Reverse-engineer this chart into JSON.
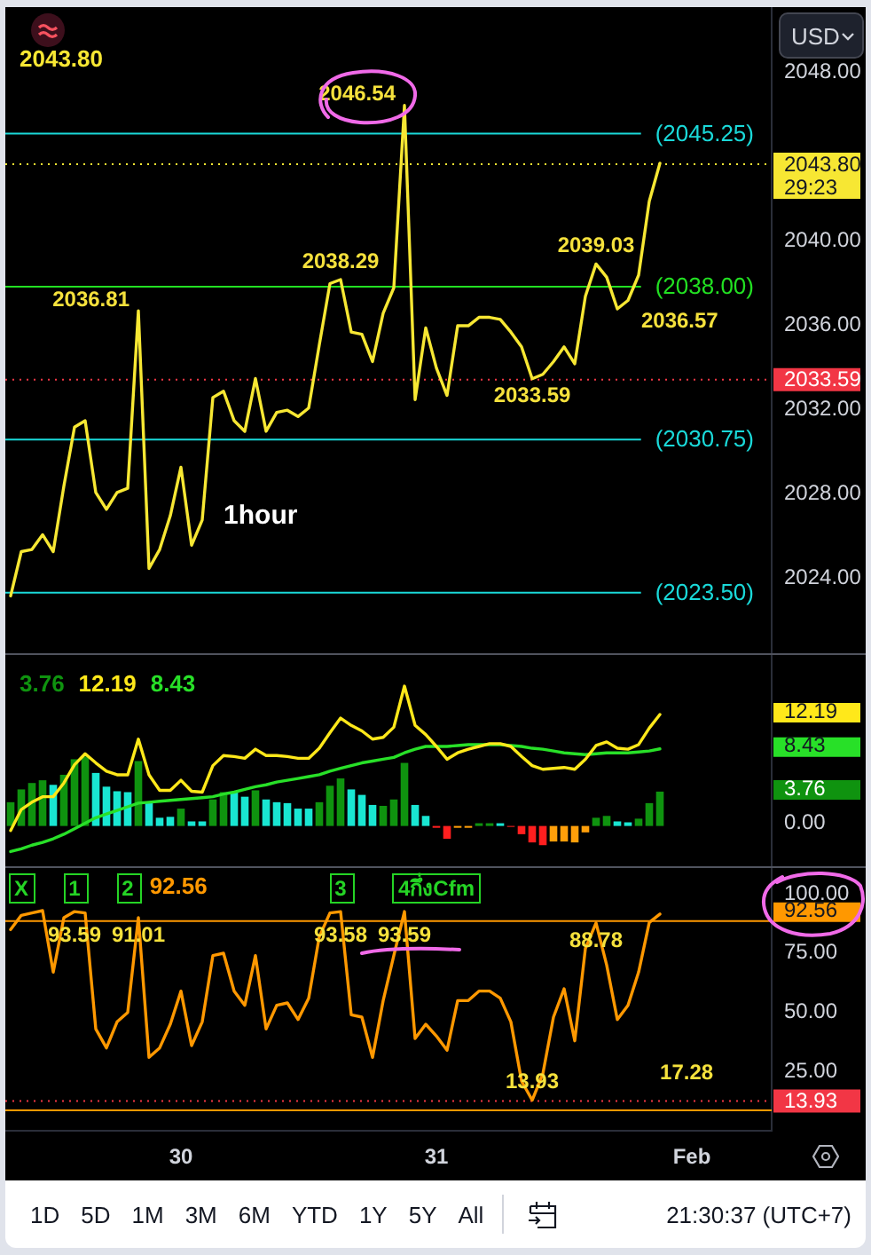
{
  "chart_data": [
    {
      "type": "line",
      "ylabel": "USD",
      "categories": [
        null,
        null,
        null,
        null,
        null,
        null,
        null,
        null,
        null,
        null,
        null,
        null,
        null,
        null,
        null,
        null,
        null,
        null,
        null,
        null,
        null,
        null,
        null,
        null,
        null,
        null,
        null,
        null,
        null,
        null,
        null,
        null,
        null,
        null,
        null,
        null,
        null,
        null,
        null,
        null,
        null,
        null,
        null,
        null,
        null,
        null,
        null,
        null,
        null,
        null,
        null,
        null,
        null,
        null,
        null,
        null,
        null,
        null,
        null,
        null,
        null,
        null,
        null,
        null,
        null,
        null,
        null,
        null,
        null,
        null,
        null,
        null
      ],
      "series": [
        {
          "color": "#f7e733",
          "values": [
            2023.3,
            2025.4,
            2025.5,
            2026.2,
            2025.4,
            2028.5,
            2031.3,
            2031.6,
            2028.2,
            2027.4,
            2028.2,
            2028.4,
            2036.81,
            2024.6,
            2025.5,
            2027.1,
            2029.4,
            2025.7,
            2026.9,
            2032.7,
            2033.0,
            2031.6,
            2031.1,
            2033.6,
            2031.1,
            2032.0,
            2032.1,
            2031.8,
            2032.2,
            2035.2,
            2038.1,
            2038.29,
            2035.8,
            2035.7,
            2034.4,
            2036.7,
            2037.9,
            2046.54,
            2032.6,
            2036.0,
            2034.1,
            2032.8,
            2036.1,
            2036.1,
            2036.5,
            2036.5,
            2036.4,
            2035.8,
            2035.1,
            2033.59,
            2033.8,
            2034.4,
            2035.1,
            2034.3,
            2037.5,
            2039.03,
            2038.4,
            2036.9,
            2037.3,
            2038.5,
            2042.0,
            2043.8,
            null,
            null,
            null,
            null,
            null,
            null,
            null,
            null,
            null,
            null
          ],
          "value_labels": [
            null,
            null,
            null,
            null,
            null,
            null,
            null,
            null,
            null,
            null,
            null,
            null,
            "2036.81",
            null,
            null,
            null,
            null,
            null,
            null,
            null,
            null,
            null,
            null,
            null,
            null,
            null,
            null,
            null,
            null,
            null,
            null,
            "2038.29",
            null,
            null,
            null,
            null,
            null,
            "2046.54",
            null,
            null,
            null,
            null,
            null,
            null,
            null,
            null,
            null,
            null,
            null,
            "2033.59",
            null,
            null,
            null,
            null,
            null,
            "2039.03",
            null,
            null,
            null,
            null,
            null,
            null,
            null,
            null,
            null,
            null,
            null,
            null,
            null,
            null,
            null,
            null
          ]
        }
      ],
      "ylim": [
        2020.5,
        2051.2
      ],
      "yticks": [
        {
          "value": 2024,
          "label": "2024.00"
        },
        {
          "value": 2028,
          "label": "2028.00"
        },
        {
          "value": 2032,
          "label": "2032.00"
        },
        {
          "value": 2036,
          "label": "2036.00"
        },
        {
          "value": 2040,
          "label": "2040.00"
        },
        {
          "value": 2048,
          "label": "2048.00"
        }
      ],
      "tick_labels": "y",
      "ref_lines": [
        {
          "axis": "y",
          "value": 2045.25,
          "label": "(2045.25)",
          "color": "#1ad9d9",
          "line_style": "solid"
        },
        {
          "axis": "y",
          "value": 2043.8,
          "label": "2043.80",
          "color": "#f7e733",
          "line_style": "dotted"
        },
        {
          "axis": "y",
          "value": 2038,
          "label": "(2038.00)",
          "color": "#22e022",
          "line_style": "solid"
        },
        {
          "axis": "y",
          "value": 2033.59,
          "label": "2033.59",
          "color": "#f23645",
          "line_style": "dotted"
        },
        {
          "axis": "y",
          "value": 2030.75,
          "label": "(2030.75)",
          "color": "#1ad9d9",
          "line_style": "solid"
        },
        {
          "axis": "y",
          "value": 2023.5,
          "label": "(2023.50)",
          "color": "#1ad9d9",
          "line_style": "solid"
        }
      ],
      "annotations": [
        "2043.80",
        "1hour",
        "2036.57",
        "29:23"
      ]
    },
    {
      "type": "bar",
      "categories": [
        null,
        null,
        null,
        null,
        null,
        null,
        null,
        null,
        null,
        null,
        null,
        null,
        null,
        null,
        null,
        null,
        null,
        null,
        null,
        null,
        null,
        null,
        null,
        null,
        null,
        null,
        null,
        null,
        null,
        null,
        null,
        null,
        null,
        null,
        null,
        null,
        null,
        null,
        null,
        null,
        null,
        null,
        null,
        null,
        null,
        null,
        null,
        null,
        null,
        null,
        null,
        null,
        null,
        null,
        null,
        null,
        null,
        null,
        null,
        null,
        null,
        null,
        null,
        null,
        null,
        null,
        null,
        null,
        null,
        null,
        null,
        null
      ],
      "series": [
        {
          "type": "bar",
          "colors": [
            "#0f930f",
            "#0f930f",
            "#0f930f",
            "#0f930f",
            "#19e6d2",
            "#0f930f",
            "#0f930f",
            "#0f930f",
            "#19e6d2",
            "#19e6d2",
            "#19e6d2",
            "#19e6d2",
            "#0f930f",
            "#19e6d2",
            "#19e6d2",
            "#19e6d2",
            "#0f930f",
            "#19e6d2",
            "#19e6d2",
            "#0f930f",
            "#0f930f",
            "#19e6d2",
            "#19e6d2",
            "#0f930f",
            "#19e6d2",
            "#19e6d2",
            "#19e6d2",
            "#19e6d2",
            "#19e6d2",
            "#0f930f",
            "#0f930f",
            "#0f930f",
            "#19e6d2",
            "#19e6d2",
            "#19e6d2",
            "#0f930f",
            "#0f930f",
            "#0f930f",
            "#19e6d2",
            "#19e6d2",
            "#ff1f1f",
            "#ff1f1f",
            "#ff9f0a",
            "#ff9f0a",
            "#0f930f",
            "#0f930f",
            "#19e6d2",
            "#ff1f1f",
            "#ff1f1f",
            "#ff1f1f",
            "#ff1f1f",
            "#ff9f0a",
            "#ff9f0a",
            "#ff9f0a",
            "#ff9f0a",
            "#0f930f",
            "#0f930f",
            "#19e6d2",
            "#19e6d2",
            "#0f930f",
            "#0f930f",
            "#0f930f",
            null,
            null,
            null,
            null,
            null,
            null,
            null,
            null,
            null,
            null
          ],
          "values": [
            2.6,
            4.0,
            4.7,
            5.0,
            4.5,
            5.6,
            7.3,
            7.6,
            5.8,
            4.3,
            3.8,
            3.7,
            7.1,
            2.6,
            0.9,
            1.0,
            1.9,
            0.5,
            0.5,
            2.9,
            3.7,
            3.7,
            3.2,
            3.9,
            2.9,
            2.6,
            2.5,
            1.9,
            1.9,
            2.6,
            4.4,
            5.2,
            4.0,
            3.4,
            2.3,
            2.2,
            2.9,
            6.9,
            2.3,
            1.1,
            -0.2,
            -1.4,
            -0.2,
            -0.2,
            0.3,
            0.3,
            0.3,
            -0.1,
            -0.9,
            -1.8,
            -2.1,
            -1.7,
            -1.7,
            -1.8,
            -0.7,
            0.9,
            1.1,
            0.5,
            0.4,
            0.8,
            2.5,
            3.76,
            null,
            null,
            null,
            null,
            null,
            null,
            null,
            null,
            null,
            null
          ]
        },
        {
          "type": "line",
          "color": "#ffe81a",
          "values": [
            -0.5,
            1.8,
            2.6,
            3.2,
            3.2,
            4.7,
            6.7,
            7.9,
            6.9,
            6.0,
            5.6,
            5.6,
            9.5,
            5.6,
            3.9,
            3.9,
            5.0,
            3.8,
            3.7,
            6.6,
            7.7,
            7.6,
            7.4,
            8.4,
            7.7,
            7.7,
            7.6,
            7.4,
            7.4,
            8.5,
            10.2,
            11.8,
            11.0,
            10.4,
            9.5,
            9.7,
            10.8,
            15.3,
            11.0,
            10.0,
            8.7,
            7.3,
            8.0,
            8.4,
            8.7,
            9.0,
            9.0,
            8.7,
            7.6,
            6.6,
            6.2,
            6.3,
            6.4,
            6.2,
            7.3,
            8.8,
            9.2,
            8.5,
            8.4,
            8.9,
            10.7,
            12.19,
            null,
            null,
            null,
            null,
            null,
            null,
            null,
            null,
            null,
            null
          ]
        },
        {
          "type": "line",
          "color": "#28e028",
          "values": [
            -2.8,
            -2.5,
            -2.1,
            -1.8,
            -1.4,
            -0.9,
            -0.3,
            0.3,
            0.9,
            1.3,
            1.7,
            2.1,
            2.5,
            2.6,
            2.7,
            2.8,
            2.9,
            3.0,
            3.1,
            3.2,
            3.5,
            3.7,
            4.0,
            4.3,
            4.5,
            4.8,
            5.0,
            5.2,
            5.4,
            5.6,
            6.0,
            6.3,
            6.6,
            6.9,
            7.1,
            7.3,
            7.5,
            8.0,
            8.4,
            8.7,
            8.7,
            8.7,
            8.8,
            8.9,
            8.9,
            8.9,
            8.9,
            8.8,
            8.7,
            8.5,
            8.4,
            8.2,
            8.0,
            7.9,
            7.8,
            7.9,
            8.0,
            8.0,
            8.0,
            8.1,
            8.2,
            8.43,
            null,
            null,
            null,
            null,
            null,
            null,
            null,
            null,
            null,
            null
          ]
        }
      ],
      "ylim": [
        -4.6,
        18.7
      ],
      "yticks": [
        {
          "value": 0,
          "label": "0.00"
        },
        {
          "value": 3.76,
          "label": "3.76"
        },
        {
          "value": 8.43,
          "label": "8.43"
        },
        {
          "value": 12.19,
          "label": "12.19"
        }
      ],
      "tick_labels": "y",
      "annotations": [
        "3.76",
        "12.19",
        "8.43"
      ]
    },
    {
      "type": "line",
      "categories": [
        null,
        null,
        null,
        null,
        null,
        null,
        null,
        null,
        null,
        null,
        null,
        null,
        null,
        null,
        null,
        null,
        "30",
        null,
        null,
        null,
        null,
        null,
        null,
        null,
        null,
        null,
        null,
        null,
        null,
        null,
        null,
        null,
        null,
        null,
        null,
        null,
        null,
        null,
        null,
        null,
        "31",
        null,
        null,
        null,
        null,
        null,
        null,
        null,
        null,
        null,
        null,
        null,
        null,
        null,
        null,
        null,
        null,
        null,
        null,
        null,
        null,
        null,
        null,
        null,
        "Feb",
        null,
        null,
        null,
        null,
        null,
        null,
        null
      ],
      "series": [
        {
          "color": "#ff9800",
          "values": [
            86,
            92,
            93,
            94,
            68,
            91,
            93.59,
            93,
            44,
            36,
            47,
            51,
            91.01,
            32,
            36,
            46,
            60,
            37,
            47,
            75,
            76,
            60,
            54,
            75,
            44,
            54,
            55,
            48,
            57,
            83,
            93,
            93.58,
            50,
            49,
            32,
            56,
            75,
            93.59,
            40,
            46,
            41,
            35,
            56,
            56,
            60,
            60,
            57,
            47,
            22,
            13.93,
            25,
            49,
            61,
            39,
            78,
            88.78,
            71,
            48,
            54,
            68,
            89,
            92.56,
            null,
            null,
            null,
            null,
            null,
            null,
            null,
            null,
            null,
            null
          ],
          "value_labels": [
            null,
            null,
            null,
            null,
            null,
            null,
            "93.59",
            null,
            null,
            null,
            null,
            null,
            "91.01",
            null,
            null,
            null,
            null,
            null,
            null,
            null,
            null,
            null,
            null,
            null,
            null,
            null,
            null,
            null,
            null,
            null,
            null,
            "93.58",
            null,
            null,
            null,
            null,
            null,
            "93.59",
            null,
            null,
            null,
            null,
            null,
            null,
            null,
            null,
            null,
            null,
            null,
            "13.93",
            null,
            null,
            null,
            null,
            null,
            "88.78",
            null,
            null,
            null,
            null,
            null,
            null,
            null,
            null,
            null,
            null,
            null,
            null,
            null,
            null,
            null,
            null
          ]
        }
      ],
      "ylim": [
        1,
        112
      ],
      "yticks": [
        {
          "value": 25,
          "label": "25.00"
        },
        {
          "value": 50,
          "label": "50.00"
        },
        {
          "value": 75,
          "label": "75.00"
        },
        {
          "value": 92.56,
          "label": "92.56"
        },
        {
          "value": 100,
          "label": "100.00"
        }
      ],
      "ref_lines": [
        {
          "axis": "y",
          "value": 90,
          "color": "#ff9800",
          "line_style": "solid"
        },
        {
          "axis": "y",
          "value": 10,
          "color": "#ff9800",
          "line_style": "solid"
        },
        {
          "axis": "y",
          "value": 13.93,
          "label": "13.93",
          "color": "#f23645",
          "line_style": "dotted"
        }
      ],
      "annotations": [
        "92.56",
        "X",
        "1",
        "2",
        "3",
        "4กึ่งCfm",
        "17.28"
      ]
    },
    {
      "type": "other",
      "annotations": [
        "1D",
        "5D",
        "1M",
        "3M",
        "6M",
        "YTD",
        "1Y",
        "5Y",
        "All",
        "21:30:37 (UTC+7)"
      ]
    }
  ]
}
